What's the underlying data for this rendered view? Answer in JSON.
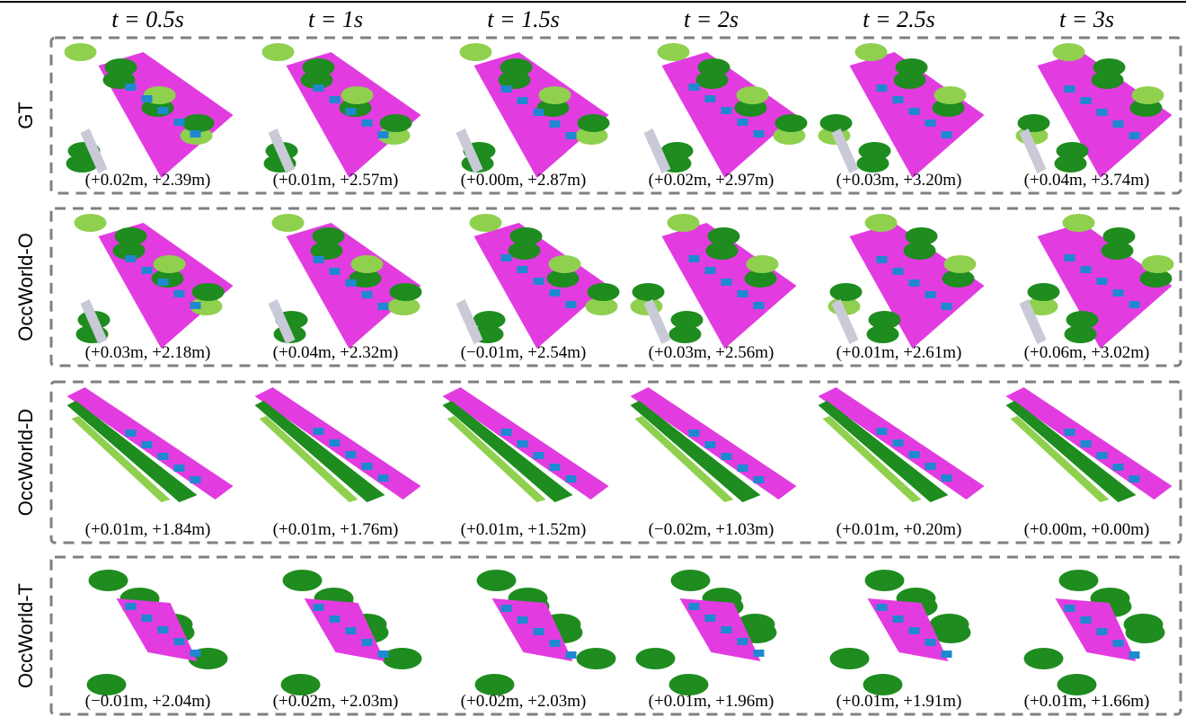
{
  "header": {
    "columns": [
      "t = 0.5s",
      "t = 1s",
      "t = 1.5s",
      "t = 2s",
      "t = 2.5s",
      "t = 3s"
    ]
  },
  "rows": [
    {
      "label": "GT",
      "captions": [
        "(+0.02m, +2.39m)",
        "(+0.01m, +2.57m)",
        "(+0.00m, +2.87m)",
        "(+0.02m, +2.97m)",
        "(+0.03m, +3.20m)",
        "(+0.04m, +3.74m)"
      ]
    },
    {
      "label": "OccWorld-O",
      "captions": [
        "(+0.03m, +2.18m)",
        "(+0.04m, +2.32m)",
        "(−0.01m, +2.54m)",
        "(+0.03m, +2.56m)",
        "(+0.01m, +2.61m)",
        "(+0.06m, +3.02m)"
      ]
    },
    {
      "label": "OccWorld-D",
      "captions": [
        "(+0.01m, +1.84m)",
        "(+0.01m, +1.76m)",
        "(+0.01m, +1.52m)",
        "(−0.02m, +1.03m)",
        "(+0.01m, +0.20m)",
        "(+0.00m, +0.00m)"
      ]
    },
    {
      "label": "OccWorld-T",
      "captions": [
        "(−0.01m, +2.04m)",
        "(+0.02m, +2.03m)",
        "(+0.02m, +2.03m)",
        "(+0.01m, +1.96m)",
        "(+0.01m, +1.91m)",
        "(+0.01m, +1.66m)"
      ]
    }
  ]
}
